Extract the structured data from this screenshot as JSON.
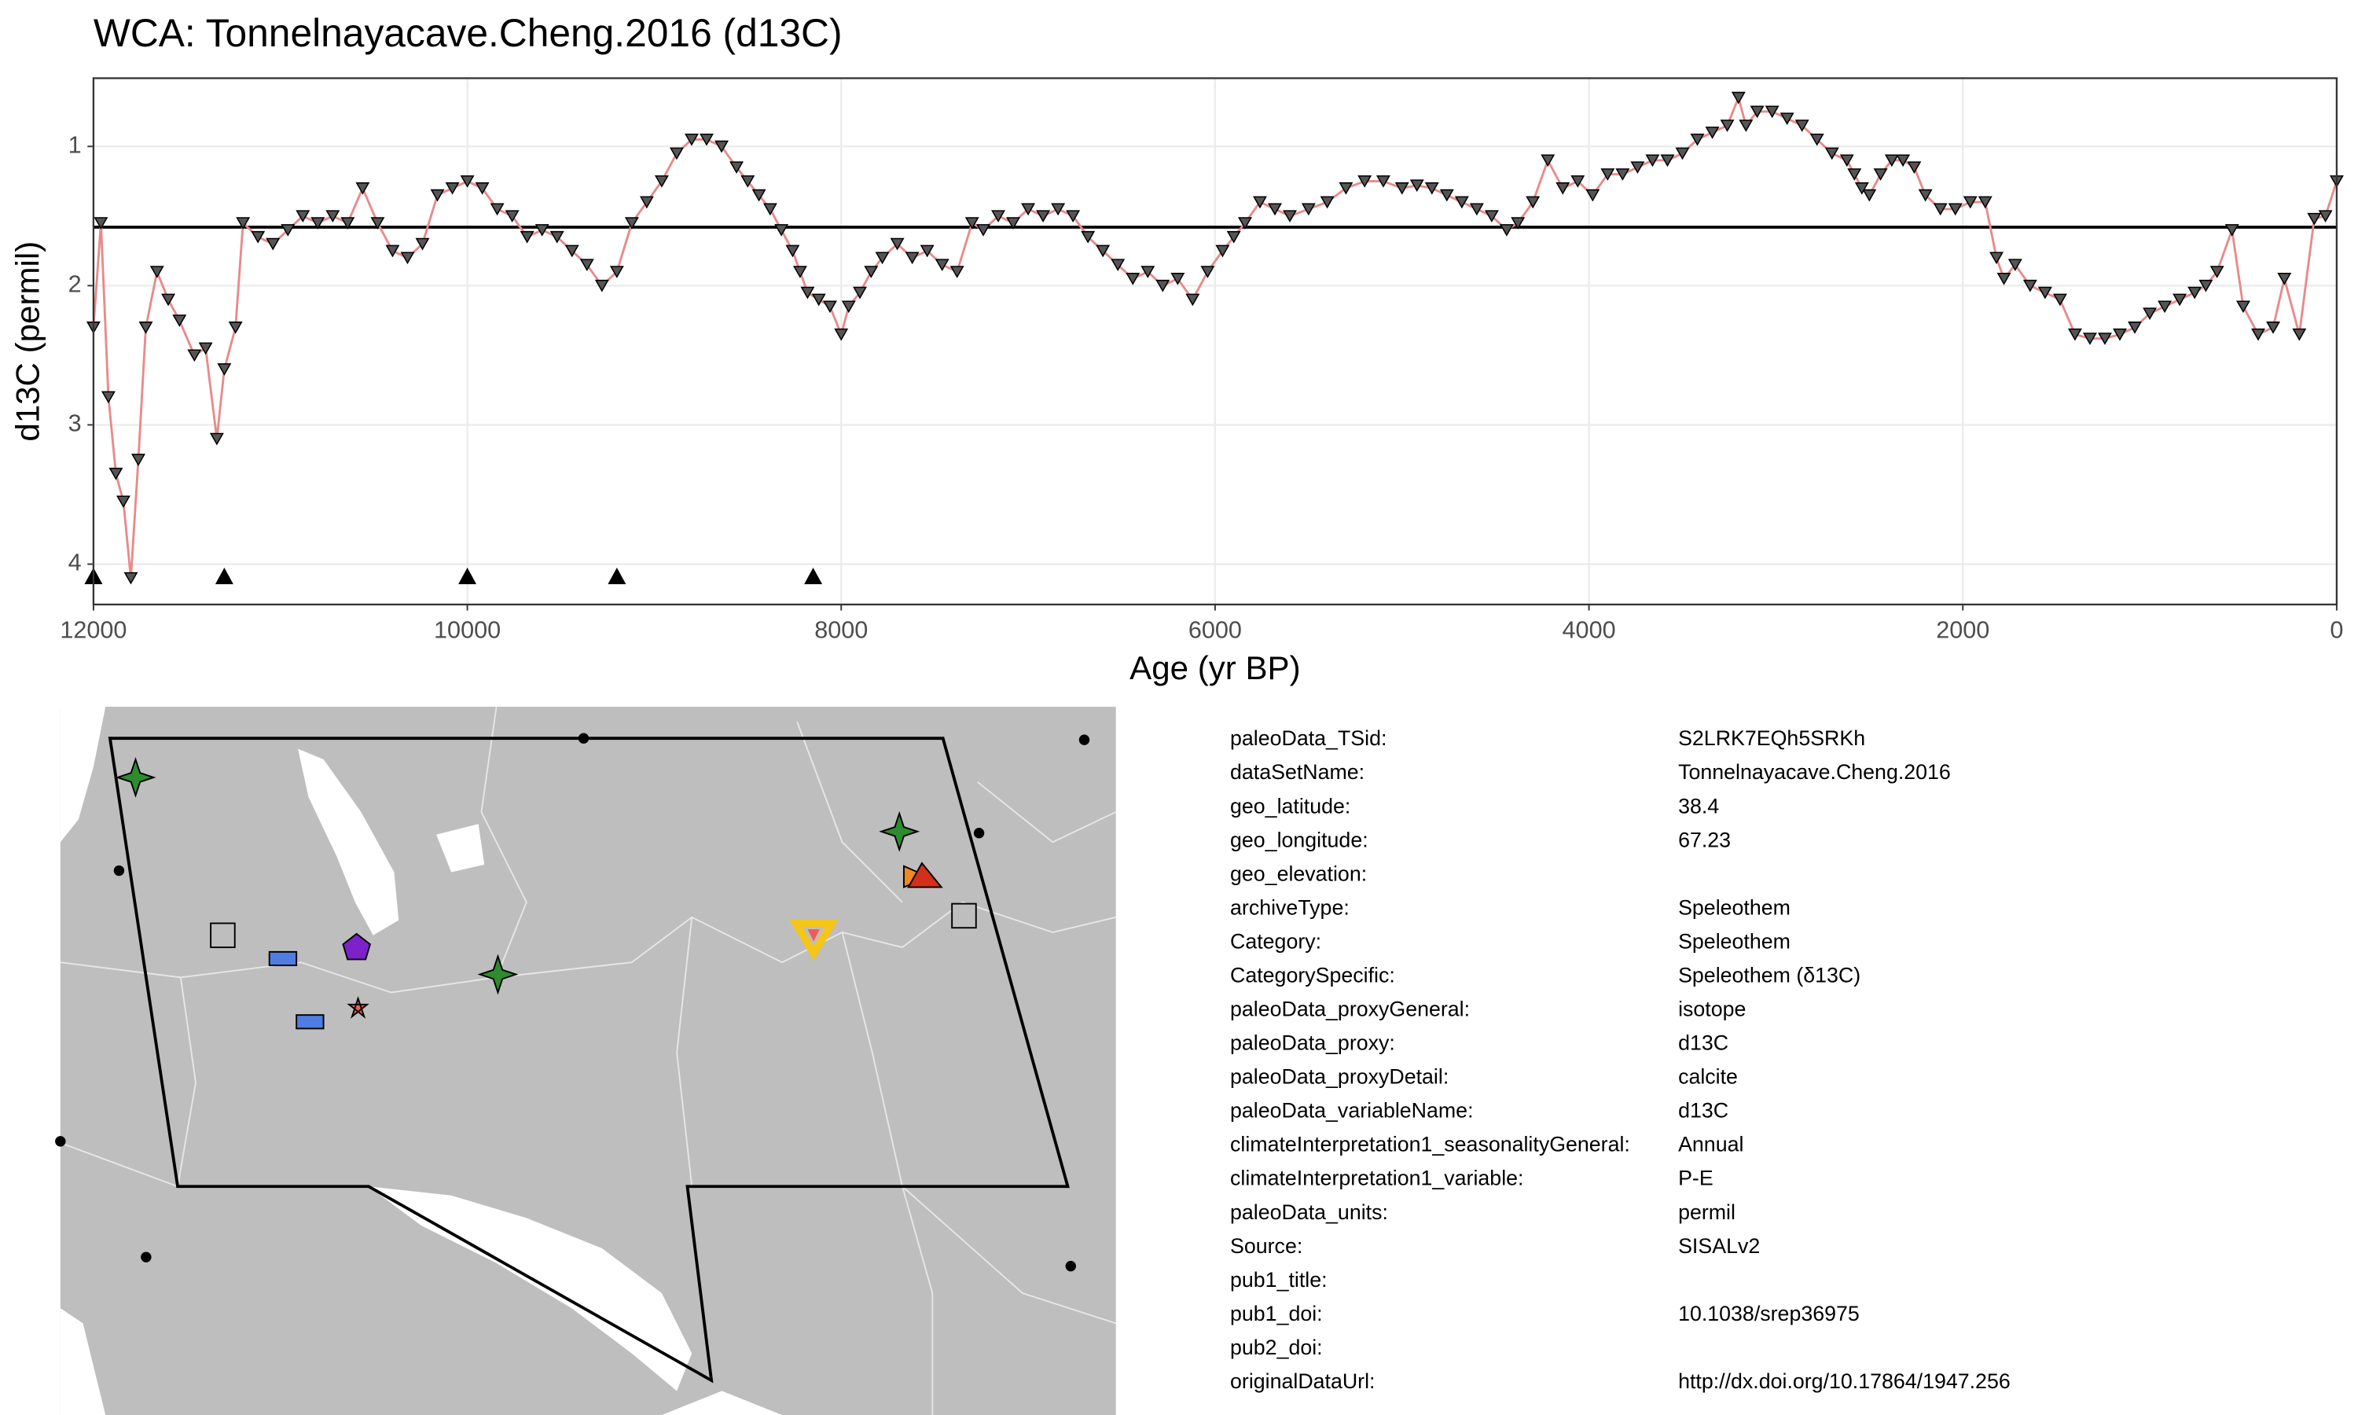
{
  "chart_data": {
    "type": "line",
    "title": "WCA: Tonnelnayacave.Cheng.2016 (d13C)",
    "x_label": "Age (yr BP)",
    "y_label": "d13C (permil)",
    "xlim": [
      12000,
      0
    ],
    "ylim": [
      0.51,
      4.29
    ],
    "y_reversed": true,
    "xticks": [
      12000,
      10000,
      8000,
      6000,
      4000,
      2000,
      0
    ],
    "yticks": [
      1,
      2,
      3,
      4
    ],
    "grid": true,
    "color": "#e88a8a",
    "marker_color": "#555555",
    "reference_line": 1.58,
    "x": [
      0,
      60,
      120,
      200,
      280,
      340,
      420,
      500,
      560,
      640,
      700,
      760,
      840,
      920,
      1000,
      1080,
      1160,
      1240,
      1320,
      1400,
      1480,
      1560,
      1640,
      1720,
      1780,
      1820,
      1880,
      1960,
      2040,
      2120,
      2200,
      2260,
      2320,
      2380,
      2440,
      2500,
      2540,
      2580,
      2620,
      2700,
      2780,
      2860,
      2940,
      3020,
      3100,
      3160,
      3200,
      3260,
      3340,
      3420,
      3500,
      3580,
      3660,
      3740,
      3820,
      3900,
      3980,
      4060,
      4140,
      4220,
      4300,
      4380,
      4440,
      4520,
      4600,
      4680,
      4760,
      4840,
      4920,
      5000,
      5100,
      5200,
      5300,
      5400,
      5500,
      5600,
      5680,
      5760,
      5840,
      5900,
      5960,
      6040,
      6120,
      6200,
      6280,
      6360,
      6440,
      6520,
      6600,
      6680,
      6760,
      6840,
      6920,
      7000,
      7080,
      7160,
      7240,
      7300,
      7380,
      7460,
      7540,
      7620,
      7700,
      7780,
      7840,
      7900,
      7960,
      8000,
      8060,
      8120,
      8180,
      8220,
      8260,
      8320,
      8380,
      8440,
      8500,
      8560,
      8640,
      8720,
      8800,
      8880,
      8960,
      9040,
      9120,
      9200,
      9280,
      9360,
      9440,
      9520,
      9600,
      9680,
      9760,
      9840,
      9920,
      10000,
      10080,
      10160,
      10240,
      10320,
      10400,
      10480,
      10560,
      10640,
      10720,
      10800,
      10880,
      10960,
      11040,
      11120,
      11200,
      11240,
      11300,
      11340,
      11400,
      11460,
      11540,
      11600,
      11660,
      11720,
      11760,
      11800,
      11840,
      11880,
      11920,
      11960,
      12000
    ],
    "values": [
      1.25,
      1.5,
      1.52,
      2.35,
      1.95,
      2.3,
      2.35,
      2.15,
      1.6,
      1.9,
      2.0,
      2.05,
      2.1,
      2.15,
      2.2,
      2.3,
      2.35,
      2.38,
      2.38,
      2.35,
      2.1,
      2.05,
      2.0,
      1.85,
      1.95,
      1.8,
      1.4,
      1.4,
      1.45,
      1.45,
      1.35,
      1.15,
      1.1,
      1.1,
      1.2,
      1.35,
      1.3,
      1.2,
      1.1,
      1.05,
      0.95,
      0.85,
      0.8,
      0.75,
      0.75,
      0.85,
      0.65,
      0.85,
      0.9,
      0.95,
      1.05,
      1.1,
      1.1,
      1.15,
      1.2,
      1.2,
      1.35,
      1.25,
      1.3,
      1.1,
      1.4,
      1.55,
      1.6,
      1.5,
      1.45,
      1.4,
      1.35,
      1.3,
      1.28,
      1.3,
      1.25,
      1.25,
      1.3,
      1.4,
      1.45,
      1.5,
      1.45,
      1.4,
      1.55,
      1.65,
      1.75,
      1.9,
      2.1,
      1.95,
      2.0,
      1.9,
      1.95,
      1.85,
      1.75,
      1.65,
      1.5,
      1.45,
      1.5,
      1.45,
      1.55,
      1.5,
      1.6,
      1.55,
      1.9,
      1.85,
      1.75,
      1.8,
      1.7,
      1.8,
      1.9,
      2.05,
      2.15,
      2.35,
      2.15,
      2.1,
      2.05,
      1.9,
      1.75,
      1.6,
      1.45,
      1.35,
      1.25,
      1.15,
      1.0,
      0.95,
      0.95,
      1.05,
      1.25,
      1.4,
      1.55,
      1.9,
      2.0,
      1.85,
      1.75,
      1.65,
      1.6,
      1.65,
      1.5,
      1.45,
      1.3,
      1.25,
      1.3,
      1.35,
      1.7,
      1.8,
      1.75,
      1.55,
      1.3,
      1.55,
      1.5,
      1.55,
      1.5,
      1.6,
      1.7,
      1.65,
      1.55,
      2.3,
      2.6,
      3.1,
      2.45,
      2.5,
      2.25,
      2.1,
      1.9,
      2.3,
      3.25,
      4.1,
      3.55,
      3.35,
      2.8,
      1.55,
      2.3
    ],
    "age_markers": {
      "x": [
        12000,
        11300,
        10000,
        9200,
        8150
      ],
      "values": [
        4.09,
        4.09,
        4.09,
        4.09,
        4.09
      ]
    }
  },
  "metadata": {
    "rows": [
      {
        "key": "paleoData_TSid:",
        "value": "S2LRK7EQh5SRKh"
      },
      {
        "key": "dataSetName:",
        "value": "Tonnelnayacave.Cheng.2016"
      },
      {
        "key": "geo_latitude:",
        "value": "38.4"
      },
      {
        "key": "geo_longitude:",
        "value": "67.23"
      },
      {
        "key": "geo_elevation:"
      },
      {
        "key": "archiveType:",
        "value": "Speleothem"
      },
      {
        "key": "Category:",
        "value": "Speleothem"
      },
      {
        "key": "CategorySpecific:",
        "value": "Speleothem (δ13C)"
      },
      {
        "key": "paleoData_proxyGeneral:",
        "value": "isotope"
      },
      {
        "key": "paleoData_proxy:",
        "value": "d13C"
      },
      {
        "key": "paleoData_proxyDetail:",
        "value": "calcite"
      },
      {
        "key": "paleoData_variableName:",
        "value": "d13C"
      },
      {
        "key": "climateInterpretation1_seasonalityGeneral:",
        "value": "Annual"
      },
      {
        "key": "climateInterpretation1_variable:",
        "value": "P-E"
      },
      {
        "key": "paleoData_units:",
        "value": "permil"
      },
      {
        "key": "Source:",
        "value": "SISALv2"
      },
      {
        "key": "pub1_title:"
      },
      {
        "key": "pub1_doi:",
        "value": "10.1038/srep36975"
      },
      {
        "key": "pub2_doi:"
      },
      {
        "key": "originalDataUrl:",
        "value": "http://dx.doi.org/10.17864/1947.256"
      }
    ]
  }
}
